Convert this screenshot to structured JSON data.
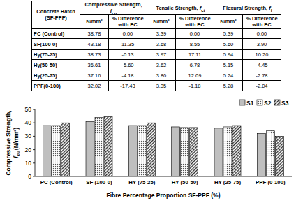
{
  "table": {
    "header": {
      "batch": [
        "Concrete Batch",
        "(SF-PPF)"
      ],
      "groups": [
        {
          "text": "Compressive Strength,",
          "symbol": "f",
          "sub": "cu"
        },
        {
          "text": "Tensile Strength,",
          "symbol": "f",
          "sub": "ct"
        },
        {
          "text": "Flexural Strength,",
          "symbol": "f",
          "sub": "f"
        }
      ],
      "columns": [
        "N/mm²",
        "% Difference with PC"
      ]
    },
    "rows": [
      [
        "PC (Control)",
        "38.78",
        "0.00",
        "3.39",
        "0.00",
        "5.39",
        "0.00"
      ],
      [
        "SF(100-0)",
        "43.18",
        "11.35",
        "3.68",
        "8.55",
        "5.60",
        "3.90"
      ],
      [
        "Hy(75-25)",
        "38.73",
        "-0.13",
        "3.97",
        "17.11",
        "5.94",
        "10.20"
      ],
      [
        "Hy(50-50)",
        "36.61",
        "-5.60",
        "3.62",
        "6.78",
        "5.15",
        "-4.45"
      ],
      [
        "Hy(25-75)",
        "37.16",
        "-4.18",
        "3.80",
        "12.09",
        "5.24",
        "-2.78"
      ],
      [
        "PPF(0-100)",
        "32.02",
        "-17.43",
        "3.35",
        "-1.18",
        "5.28",
        "-2.04"
      ]
    ]
  },
  "chart_data": {
    "type": "bar",
    "x_label": "Fibre Percentage Proportion SF-PPF (%)",
    "y_label": {
      "text": "Compressive Strength,",
      "symbol": "f",
      "sub": "cu",
      "unit": "(N/mm²)"
    },
    "categories": [
      "PC (Control)",
      "SF (100-0)",
      "HY (75-25)",
      "HY (50-50)",
      "HY (25-75)",
      "PPF (0-100)"
    ],
    "series": [
      {
        "name": "S1",
        "color": "#bfbfbf",
        "values": [
          38,
          41,
          38,
          37,
          36,
          32
        ]
      },
      {
        "name": "S2",
        "color": "#555555",
        "values": [
          38,
          44,
          38,
          36.5,
          37,
          34
        ]
      },
      {
        "name": "S3",
        "color": "#333333",
        "values": [
          40,
          44.5,
          40,
          36.5,
          38,
          30
        ]
      }
    ],
    "ylim": [
      0,
      50
    ],
    "yticks": [
      0,
      10,
      20,
      30,
      40,
      50
    ],
    "grid": false,
    "legend": "top-right"
  }
}
